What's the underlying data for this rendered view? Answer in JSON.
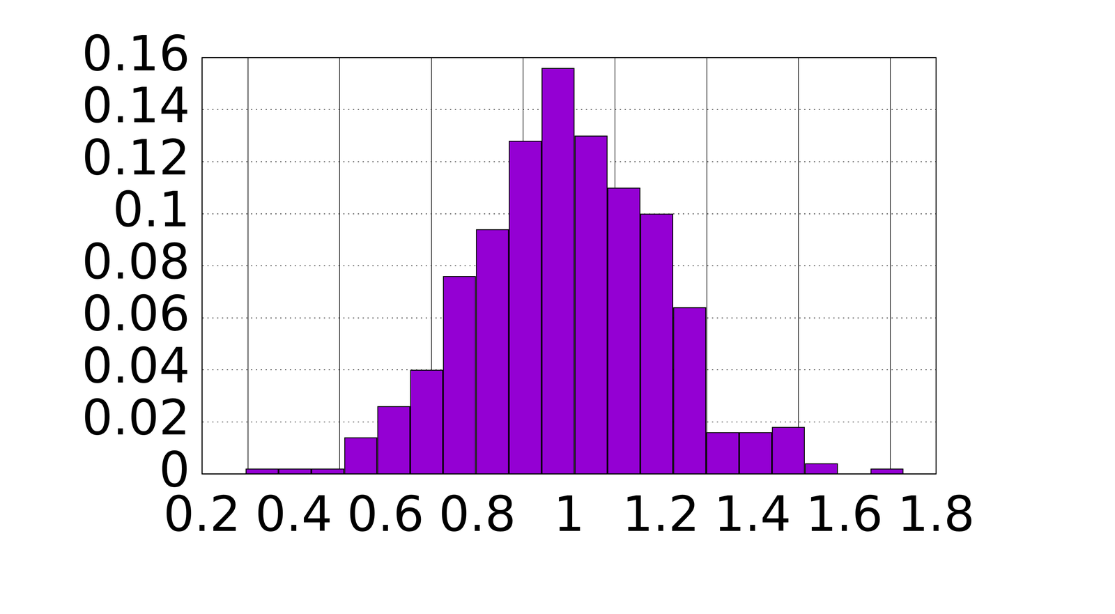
{
  "chart_data": {
    "type": "histogram",
    "bins": [
      0.295,
      0.367,
      0.438,
      0.51,
      0.582,
      0.654,
      0.725,
      0.797,
      0.869,
      0.94,
      1.012,
      1.084,
      1.155,
      1.227,
      1.299,
      1.371,
      1.442,
      1.514,
      1.586,
      1.657,
      1.729
    ],
    "values": [
      0.002,
      0.002,
      0.002,
      0.014,
      0.026,
      0.04,
      0.076,
      0.094,
      0.128,
      0.156,
      0.13,
      0.11,
      0.1,
      0.064,
      0.016,
      0.016,
      0.018,
      0.004,
      0,
      0.002
    ],
    "color": "#9400d3",
    "xlim": [
      0.2,
      1.8
    ],
    "xticks": [
      0.2,
      0.4,
      0.6,
      0.8,
      1,
      1.2,
      1.4,
      1.6,
      1.8
    ],
    "ylim": [
      0,
      0.16
    ],
    "yticks": [
      0,
      0.02,
      0.04,
      0.06,
      0.08,
      0.1,
      0.12,
      0.14,
      0.16
    ],
    "grid": true
  }
}
